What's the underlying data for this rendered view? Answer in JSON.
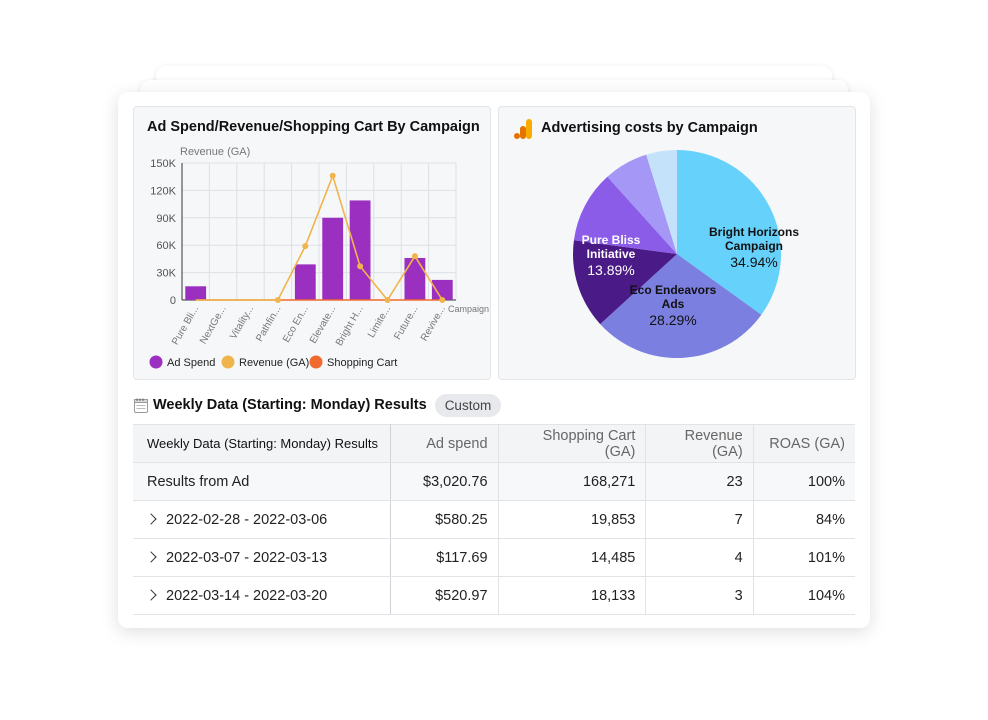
{
  "bar_panel": {
    "title": "Ad Spend/Revenue/Shopping Cart By Campaign",
    "legend": [
      "Ad Spend",
      "Revenue (GA)",
      "Shopping Cart"
    ]
  },
  "pie_panel": {
    "title": "Advertising costs by Campaign",
    "icon": "google-analytics-icon"
  },
  "section": {
    "icon": "spreadsheet-icon",
    "title": "Weekly Data (Starting: Monday) Results",
    "chip": "Custom"
  },
  "table": {
    "headers": [
      "Weekly Data (Starting: Monday) Results",
      "Ad spend",
      "Shopping Cart (GA)",
      "Revenue (GA)",
      "ROAS (GA)"
    ],
    "summary": [
      "Results from Ad",
      "$3,020.76",
      "168,271",
      "23",
      "100%"
    ],
    "rows": [
      [
        "2022-02-28 - 2022-03-06",
        "$580.25",
        "19,853",
        "7",
        "84%"
      ],
      [
        "2022-03-07 - 2022-03-13",
        "$117.69",
        "14,485",
        "4",
        "101%"
      ],
      [
        "2022-03-14 - 2022-03-20",
        "$520.97",
        "18,133",
        "3",
        "104%"
      ]
    ]
  },
  "colors": {
    "ad_spend": "#9b2fc0",
    "revenue": "#f0b44c",
    "shopping_cart": "#ef6a2c",
    "pie": [
      "#66d2fc",
      "#7b7fe0",
      "#4a1a86",
      "#8a5ce8",
      "#a597f5",
      "#c4e3fb"
    ]
  },
  "chart_data": [
    {
      "type": "bar",
      "title": "Ad Spend/Revenue/Shopping Cart By Campaign",
      "ylabel": "Revenue (GA)",
      "xlabel": "Campaign",
      "ylim": [
        0,
        150000
      ],
      "yticks": [
        "0",
        "30K",
        "60K",
        "90K",
        "120K",
        "150K"
      ],
      "categories": [
        "Pure Bli...",
        "NextGe...",
        "Vitality...",
        "Pathfin...",
        "Eco En...",
        "Elevate...",
        "Bright H...",
        "Limite...",
        "Future...",
        "Revive..."
      ],
      "series": [
        {
          "name": "Ad Spend",
          "type": "bar",
          "values": [
            15000,
            0,
            0,
            0,
            39000,
            90000,
            109000,
            0,
            46000,
            22000
          ]
        },
        {
          "name": "Revenue (GA)",
          "type": "line",
          "values": [
            0,
            0,
            0,
            0,
            59000,
            136000,
            37000,
            0,
            48000,
            0
          ]
        },
        {
          "name": "Shopping Cart",
          "type": "line",
          "values": [
            0,
            0,
            0,
            0,
            0,
            0,
            0,
            0,
            0,
            0
          ]
        }
      ]
    },
    {
      "type": "pie",
      "title": "Advertising costs by Campaign",
      "slices": [
        {
          "label": "Bright Horizons Campaign",
          "value": 34.94,
          "text": "34.94%"
        },
        {
          "label": "Eco Endeavors Ads",
          "value": 28.29,
          "text": "28.29%"
        },
        {
          "label": "Pure Bliss Initiative",
          "value": 13.89,
          "text": "13.89%"
        },
        {
          "label": "",
          "value": 11.2,
          "text": ""
        },
        {
          "label": "",
          "value": 6.9,
          "text": ""
        },
        {
          "label": "",
          "value": 4.78,
          "text": ""
        }
      ]
    }
  ]
}
